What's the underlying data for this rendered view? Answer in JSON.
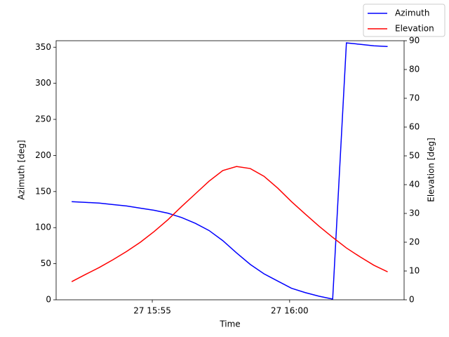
{
  "chart_data": {
    "type": "line",
    "xlabel": "Time",
    "ylabel": "Azimuth [deg]",
    "y2label": "Elevation [deg]",
    "x": [
      "15:52:04",
      "15:52:34",
      "15:53:04",
      "15:53:34",
      "15:54:04",
      "15:54:34",
      "15:55:04",
      "15:55:34",
      "15:56:04",
      "15:56:34",
      "15:57:04",
      "15:57:34",
      "15:58:04",
      "15:58:34",
      "15:59:04",
      "15:59:34",
      "16:00:04",
      "16:00:34",
      "16:01:04",
      "16:01:34",
      "16:02:04",
      "16:02:34",
      "16:03:04",
      "16:03:34"
    ],
    "series": [
      {
        "name": "Azimuth",
        "color": "#0000ff",
        "axis": "y",
        "values": [
          136,
          135,
          134,
          132,
          130,
          127,
          124,
          120,
          114,
          106,
          96,
          82,
          65,
          49,
          36,
          26,
          16,
          10,
          5,
          1,
          356,
          354,
          352,
          351
        ]
      },
      {
        "name": "Elevation",
        "color": "#ff0000",
        "axis": "y2",
        "values": [
          6.3,
          8.8,
          11.2,
          13.9,
          16.8,
          20,
          23.7,
          27.8,
          32.4,
          36.8,
          41.2,
          44.9,
          46.3,
          45.6,
          42.9,
          38.8,
          34.1,
          29.8,
          25.6,
          21.7,
          18,
          14.9,
          12,
          9.7
        ]
      }
    ],
    "xlim": [
      "15:51:30",
      "16:04:10"
    ],
    "xticks": [
      {
        "value": "15:55:00",
        "label": "27 15:55"
      },
      {
        "value": "16:00:00",
        "label": "27 16:00"
      }
    ],
    "ylim": [
      0,
      359
    ],
    "yticks": [
      0,
      50,
      100,
      150,
      200,
      250,
      300,
      350
    ],
    "y2lim": [
      0,
      90
    ],
    "y2ticks": [
      0,
      10,
      20,
      30,
      40,
      50,
      60,
      70,
      80,
      90
    ],
    "grid": false,
    "legend": "upper right"
  }
}
